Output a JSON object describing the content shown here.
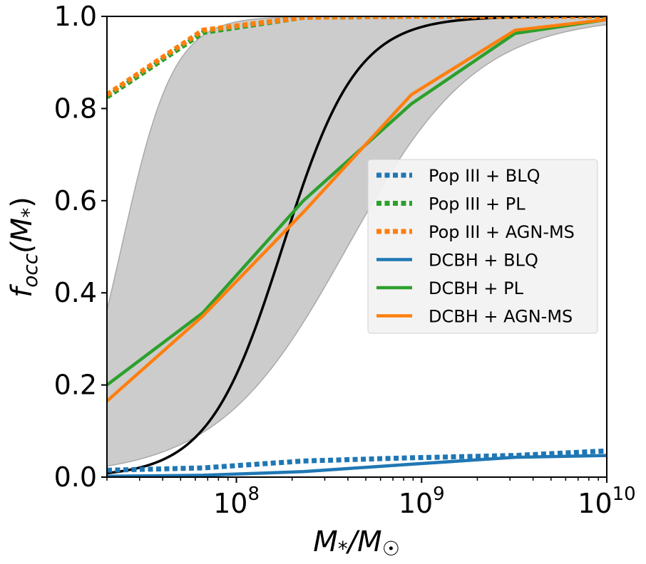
{
  "chart_data": {
    "type": "line",
    "xscale": "log",
    "xlim": [
      20000000,
      10000000000
    ],
    "ylim": [
      0.0,
      1.0
    ],
    "xlabel": "M*/M☉",
    "xlabel_main": "M",
    "xlabel_star": "*",
    "xlabel_slash": "/M",
    "xlabel_sun": "☉",
    "ylabel": "f_occ(M*)",
    "ylabel_f": "f",
    "ylabel_sub": "occ",
    "ylabel_open": "(M",
    "ylabel_star": "*",
    "ylabel_close": ")",
    "xticks": [
      {
        "value": 100000000,
        "base": "10",
        "exp": "8"
      },
      {
        "value": 1000000000,
        "base": "10",
        "exp": "9"
      },
      {
        "value": 10000000000,
        "base": "10",
        "exp": "10"
      }
    ],
    "yticks": [
      "0.0",
      "0.2",
      "0.4",
      "0.6",
      "0.8",
      "1.0"
    ],
    "band": {
      "color": "#cccccc",
      "lower": {
        "logM0": 8.6,
        "width": 0.35
      },
      "upper": {
        "logM0": 7.38,
        "width": 0.14
      }
    },
    "reference_curve": {
      "color": "#000000",
      "logM0": 8.25,
      "width": 0.2
    },
    "series": [
      {
        "name": "Pop III + BLQ",
        "style": "dotted",
        "color": "#1f77b4",
        "x": [
          20000000,
          66000000,
          230000000,
          880000000,
          3200000000,
          10000000000
        ],
        "y": [
          0.015,
          0.02,
          0.035,
          0.042,
          0.047,
          0.057
        ]
      },
      {
        "name": "Pop III + PL",
        "style": "dotted",
        "color": "#2ca02c",
        "x": [
          20000000,
          66000000,
          230000000,
          880000000,
          3200000000,
          10000000000
        ],
        "y": [
          0.825,
          0.965,
          0.998,
          1.0,
          1.0,
          1.0
        ]
      },
      {
        "name": "Pop III + AGN-MS",
        "style": "dotted",
        "color": "#ff7f0e",
        "x": [
          20000000,
          66000000,
          230000000,
          880000000,
          3200000000,
          10000000000
        ],
        "y": [
          0.83,
          0.97,
          0.998,
          1.0,
          1.0,
          1.0
        ]
      },
      {
        "name": "DCBH + BLQ",
        "style": "solid",
        "color": "#1f77b4",
        "x": [
          20000000,
          66000000,
          230000000,
          880000000,
          3200000000,
          10000000000
        ],
        "y": [
          0.002,
          0.004,
          0.012,
          0.028,
          0.043,
          0.047
        ]
      },
      {
        "name": "DCBH + PL",
        "style": "solid",
        "color": "#2ca02c",
        "x": [
          20000000,
          66000000,
          230000000,
          880000000,
          3200000000,
          10000000000
        ],
        "y": [
          0.2,
          0.357,
          0.6,
          0.81,
          0.963,
          0.993
        ]
      },
      {
        "name": "DCBH + AGN-MS",
        "style": "solid",
        "color": "#ff7f0e",
        "x": [
          20000000,
          66000000,
          230000000,
          880000000,
          3200000000,
          10000000000
        ],
        "y": [
          0.165,
          0.35,
          0.575,
          0.83,
          0.97,
          0.993
        ]
      }
    ],
    "legend": {
      "position": "center-right"
    }
  }
}
